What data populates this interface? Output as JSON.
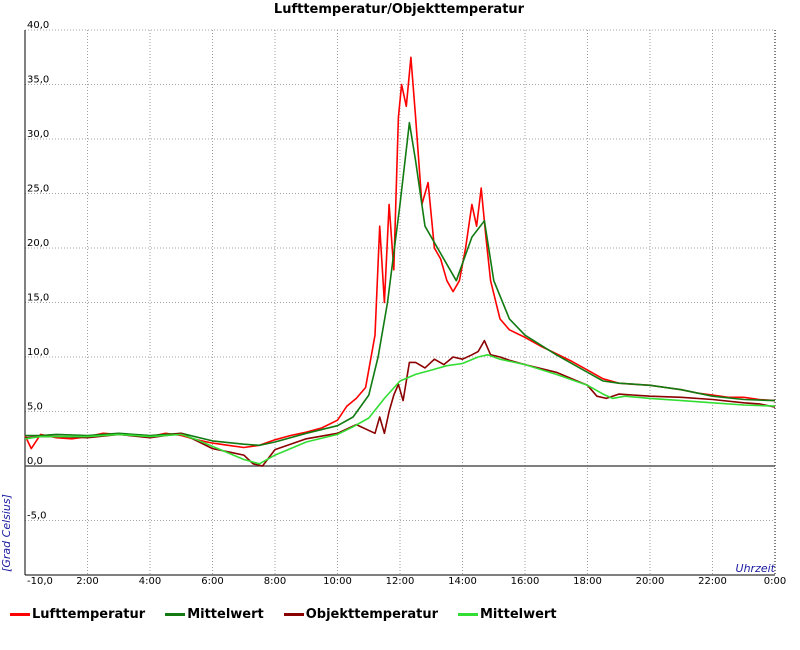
{
  "chart_data": {
    "type": "line",
    "title": "Lufttemperatur/Objekttemperatur",
    "xlabel": "Uhrzeit",
    "ylabel": "[Grad Celsius]",
    "xlim": [
      0,
      24
    ],
    "ylim": [
      -10,
      40
    ],
    "y_ticks": [
      40,
      35,
      30,
      25,
      20,
      15,
      10,
      5,
      0,
      -5
    ],
    "y_tick_labels": [
      "40,0",
      "35,0",
      "30,0",
      "25,0",
      "20,0",
      "15,0",
      "10,0",
      "5,0",
      "0,0",
      "-5,0"
    ],
    "y_bottom_label": "-10,0",
    "x_tick_labels": [
      "2:00",
      "4:00",
      "6:00",
      "8:00",
      "10:00",
      "12:00",
      "14:00",
      "16:00",
      "18:00",
      "20:00",
      "22:00",
      "0:00"
    ],
    "grid": true,
    "legend_position": "bottom",
    "series": [
      {
        "name": "Lufttemperatur",
        "color": "#ff0000",
        "x": [
          0,
          0.2,
          0.5,
          1,
          1.5,
          2,
          2.5,
          3,
          3.5,
          4,
          4.5,
          5,
          5.5,
          6,
          6.5,
          7,
          7.5,
          8,
          8.5,
          9,
          9.5,
          10,
          10.3,
          10.6,
          10.9,
          11.2,
          11.35,
          11.5,
          11.65,
          11.8,
          11.95,
          12.05,
          12.2,
          12.35,
          12.5,
          12.7,
          12.9,
          13.1,
          13.3,
          13.5,
          13.7,
          13.9,
          14.1,
          14.3,
          14.45,
          14.6,
          14.75,
          14.9,
          15.2,
          15.5,
          16,
          16.5,
          17,
          17.5,
          18,
          18.5,
          19,
          19.5,
          20,
          20.5,
          21,
          21.5,
          22,
          22.5,
          23,
          23.5,
          24
        ],
        "y": [
          2.8,
          1.6,
          2.9,
          2.6,
          2.5,
          2.7,
          3.0,
          2.9,
          2.8,
          2.7,
          3.0,
          2.8,
          2.4,
          2.1,
          1.9,
          1.7,
          1.9,
          2.4,
          2.8,
          3.1,
          3.5,
          4.2,
          5.5,
          6.2,
          7.2,
          12.0,
          22.0,
          15.0,
          24.0,
          18.0,
          32.0,
          35.0,
          33.0,
          37.5,
          32.0,
          24.0,
          26.0,
          20.0,
          19.0,
          17.0,
          16.0,
          17.0,
          20.0,
          24.0,
          22.0,
          25.5,
          21.0,
          17.0,
          13.5,
          12.5,
          11.8,
          11.0,
          10.3,
          9.6,
          8.8,
          8.0,
          7.6,
          7.5,
          7.4,
          7.2,
          7.0,
          6.7,
          6.5,
          6.3,
          6.3,
          6.1,
          6.0
        ]
      },
      {
        "name": "Mittelwert",
        "color": "#117a11",
        "x": [
          0,
          0.5,
          1,
          2,
          3,
          4,
          5,
          6,
          7,
          7.5,
          8,
          9,
          10,
          10.5,
          11,
          11.3,
          11.6,
          12.0,
          12.3,
          12.5,
          12.8,
          13.3,
          13.8,
          14.3,
          14.7,
          15.0,
          15.5,
          16,
          17,
          18,
          18.5,
          19,
          20,
          21,
          22,
          23,
          24
        ],
        "y": [
          2.8,
          2.8,
          2.9,
          2.8,
          3.0,
          2.8,
          3.0,
          2.3,
          2.0,
          1.9,
          2.2,
          3.0,
          3.7,
          4.5,
          6.5,
          10.0,
          15.0,
          24.0,
          31.5,
          28.0,
          22.0,
          19.5,
          17.0,
          21.0,
          22.5,
          17.0,
          13.5,
          12.0,
          10.2,
          8.6,
          7.8,
          7.6,
          7.4,
          7.0,
          6.4,
          6.1,
          6.0
        ]
      },
      {
        "name": "Objekttemperatur",
        "color": "#8b0000",
        "x": [
          0,
          0.5,
          1,
          2,
          3,
          4,
          5,
          5.5,
          6,
          6.5,
          7,
          7.3,
          7.6,
          8,
          9,
          10,
          10.6,
          11.2,
          11.35,
          11.5,
          11.65,
          11.8,
          11.95,
          12.1,
          12.3,
          12.5,
          12.8,
          13.1,
          13.4,
          13.7,
          14.0,
          14.3,
          14.5,
          14.7,
          14.9,
          15.2,
          15.5,
          16,
          17,
          18,
          18.3,
          18.6,
          19,
          20,
          21,
          22,
          23,
          23.5,
          24
        ],
        "y": [
          2.6,
          2.7,
          2.7,
          2.6,
          2.9,
          2.6,
          3.0,
          2.3,
          1.6,
          1.3,
          1.0,
          0.2,
          0.0,
          1.5,
          2.5,
          3.0,
          3.8,
          3.0,
          4.5,
          3.0,
          5.0,
          6.5,
          7.5,
          6.0,
          9.5,
          9.5,
          9.0,
          9.8,
          9.3,
          10.0,
          9.8,
          10.2,
          10.5,
          11.5,
          10.2,
          10.0,
          9.7,
          9.3,
          8.6,
          7.4,
          6.4,
          6.2,
          6.6,
          6.4,
          6.3,
          6.1,
          5.8,
          5.7,
          5.4
        ]
      },
      {
        "name": "Mittelwert",
        "color": "#33dd33",
        "x": [
          0,
          0.5,
          1,
          2,
          3,
          4,
          5,
          5.5,
          6,
          6.5,
          7,
          7.5,
          8,
          9,
          10,
          10.5,
          11,
          11.5,
          12,
          12.5,
          13,
          13.5,
          14,
          14.5,
          14.8,
          15.2,
          16,
          17,
          18,
          18.5,
          18.8,
          19.2,
          20,
          21,
          22,
          23,
          24
        ],
        "y": [
          2.5,
          2.7,
          2.7,
          2.7,
          2.9,
          2.7,
          2.9,
          2.4,
          1.8,
          1.2,
          0.6,
          0.2,
          1.0,
          2.2,
          2.9,
          3.6,
          4.4,
          6.2,
          7.8,
          8.4,
          8.8,
          9.2,
          9.4,
          10.0,
          10.2,
          9.8,
          9.3,
          8.4,
          7.4,
          6.6,
          6.2,
          6.4,
          6.2,
          6.0,
          5.8,
          5.6,
          5.5
        ]
      }
    ]
  }
}
